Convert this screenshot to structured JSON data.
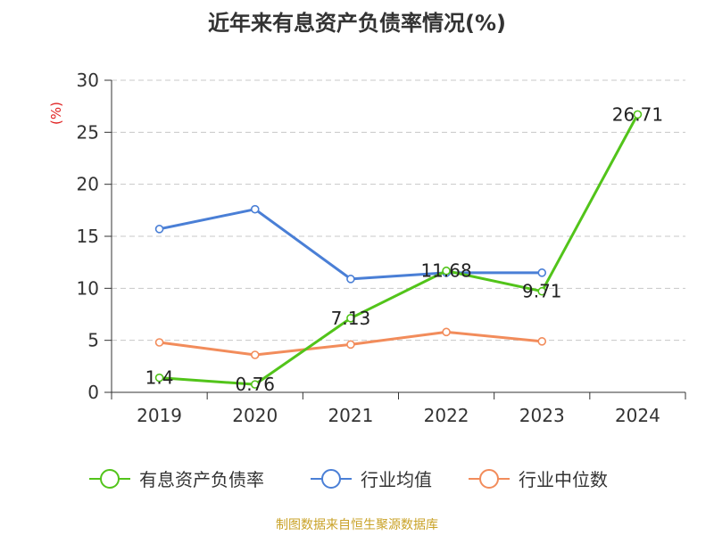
{
  "title": "近年来有息资产负债率情况(%)",
  "footer": "制图数据来自恒生聚源数据库",
  "chart_data": {
    "type": "line",
    "categories": [
      "2019",
      "2020",
      "2021",
      "2022",
      "2023",
      "2024"
    ],
    "ylabel": "(%)",
    "ylim": [
      0,
      30
    ],
    "yticks": [
      0,
      5,
      10,
      15,
      20,
      25,
      30
    ],
    "grid": true,
    "legend_position": "bottom",
    "series": [
      {
        "name": "有息资产负债率",
        "color": "#52c41a",
        "values": [
          1.4,
          0.76,
          7.13,
          11.68,
          9.71,
          26.71
        ],
        "labels": [
          "1.4",
          "0.76",
          "7.13",
          "11.68",
          "9.71",
          "26.71"
        ]
      },
      {
        "name": "行业均值",
        "color": "#4a7fd6",
        "values": [
          15.7,
          17.6,
          10.9,
          11.5,
          11.5,
          null
        ],
        "labels": []
      },
      {
        "name": "行业中位数",
        "color": "#f28c5b",
        "values": [
          4.8,
          3.6,
          4.6,
          5.8,
          4.9,
          null
        ],
        "labels": []
      }
    ]
  }
}
